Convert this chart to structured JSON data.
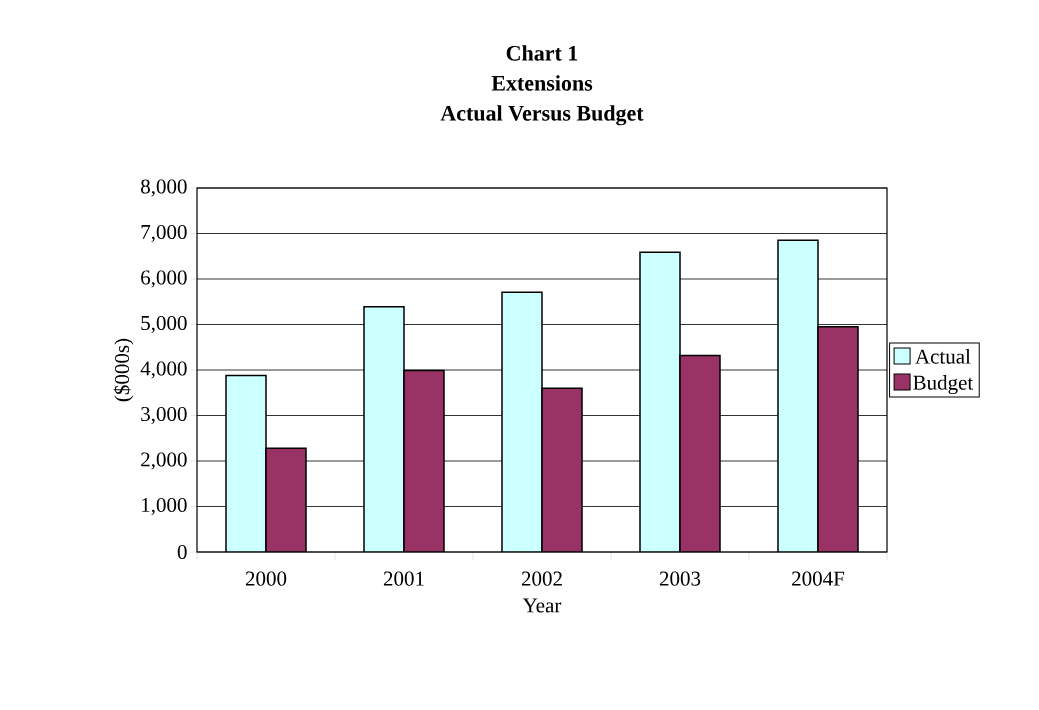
{
  "chart_data": {
    "type": "bar",
    "title": "Chart 1\nExtensions\nActual Versus Budget",
    "xlabel": "Year",
    "ylabel": "($000s)",
    "categories": [
      "2000",
      "2001",
      "2002",
      "2003",
      "2004F"
    ],
    "series": [
      {
        "name": "Actual",
        "color": "#ccffff",
        "values": [
          3880,
          5390,
          5710,
          6590,
          6850
        ]
      },
      {
        "name": "Budget",
        "color": "#993366",
        "values": [
          2280,
          3990,
          3600,
          4320,
          4950
        ]
      }
    ],
    "ylim": [
      0,
      8000
    ],
    "yticks": [
      {
        "value": 0,
        "label": "0"
      },
      {
        "value": 1000,
        "label": "1,000"
      },
      {
        "value": 2000,
        "label": "2,000"
      },
      {
        "value": 3000,
        "label": "3,000"
      },
      {
        "value": 4000,
        "label": "4,000"
      },
      {
        "value": 5000,
        "label": "5,000"
      },
      {
        "value": 6000,
        "label": "6,000"
      },
      {
        "value": 7000,
        "label": "7,000"
      },
      {
        "value": 8000,
        "label": "8,000"
      }
    ],
    "grid": "y",
    "legend": "right"
  }
}
